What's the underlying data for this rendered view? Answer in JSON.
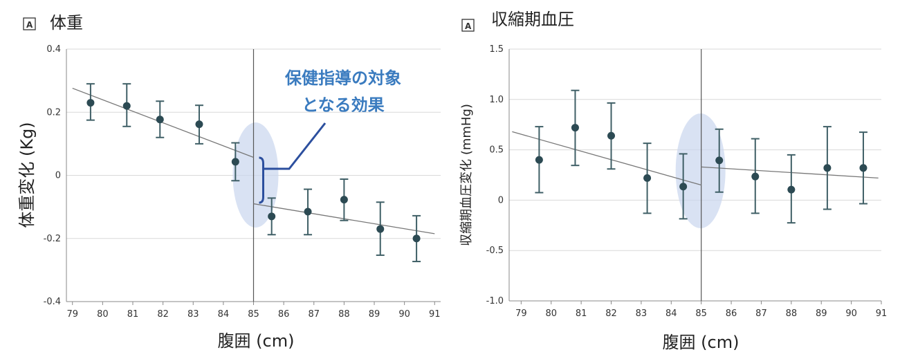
{
  "chart_data": [
    {
      "type": "scatter",
      "badge": "A",
      "title": "体重",
      "xlabel": "腹囲 (cm)",
      "ylabel": "体重変化 (Kg)",
      "xlim": [
        78.8,
        91.2
      ],
      "ylim": [
        -0.4,
        0.4
      ],
      "x_ticks": [
        "79",
        "80",
        "81",
        "82",
        "83",
        "84",
        "85",
        "86",
        "87",
        "88",
        "89",
        "90",
        "91"
      ],
      "y_ticks": [
        "0.4",
        "0.2",
        "0",
        "-0.2",
        "-0.4"
      ],
      "y_tick_values": [
        0.4,
        0.2,
        0,
        -0.2,
        -0.4
      ],
      "cutoff_x": 85,
      "points": [
        {
          "x": 79.6,
          "y": 0.23,
          "lo": 0.175,
          "hi": 0.29
        },
        {
          "x": 80.8,
          "y": 0.22,
          "lo": 0.155,
          "hi": 0.29
        },
        {
          "x": 81.9,
          "y": 0.177,
          "lo": 0.12,
          "hi": 0.235
        },
        {
          "x": 83.2,
          "y": 0.162,
          "lo": 0.1,
          "hi": 0.222
        },
        {
          "x": 84.4,
          "y": 0.043,
          "lo": -0.017,
          "hi": 0.103
        },
        {
          "x": 85.6,
          "y": -0.13,
          "lo": -0.188,
          "hi": -0.072
        },
        {
          "x": 86.8,
          "y": -0.115,
          "lo": -0.188,
          "hi": -0.044
        },
        {
          "x": 88.0,
          "y": -0.077,
          "lo": -0.143,
          "hi": -0.012
        },
        {
          "x": 89.2,
          "y": -0.17,
          "lo": -0.253,
          "hi": -0.085
        },
        {
          "x": 90.4,
          "y": -0.2,
          "lo": -0.273,
          "hi": -0.128
        }
      ],
      "trend_lines": [
        {
          "x": [
            79.0,
            85.0
          ],
          "y": [
            0.276,
            0.057
          ]
        },
        {
          "x": [
            85.0,
            91.0
          ],
          "y": [
            -0.09,
            -0.185
          ]
        }
      ],
      "annotation": [
        "保健指導の対象",
        "となる効果"
      ]
    },
    {
      "type": "scatter",
      "badge": "A",
      "title": "収縮期血圧",
      "xlabel": "腹囲 (cm)",
      "ylabel": "収縮期血圧変化 (mmHg)",
      "xlim": [
        78.6,
        91.0
      ],
      "ylim": [
        -1.0,
        1.5
      ],
      "x_ticks": [
        "79",
        "80",
        "81",
        "82",
        "83",
        "84",
        "85",
        "86",
        "87",
        "88",
        "89",
        "90",
        "91"
      ],
      "y_ticks": [
        "1.5",
        "1.0",
        "0.5",
        "0",
        "-0.5",
        "-1.0"
      ],
      "y_tick_values": [
        1.5,
        1.0,
        0.5,
        0,
        -0.5,
        -1.0
      ],
      "cutoff_x": 85,
      "points": [
        {
          "x": 79.6,
          "y": 0.4,
          "lo": 0.075,
          "hi": 0.73
        },
        {
          "x": 80.8,
          "y": 0.72,
          "lo": 0.345,
          "hi": 1.09
        },
        {
          "x": 82.0,
          "y": 0.64,
          "lo": 0.31,
          "hi": 0.965
        },
        {
          "x": 83.2,
          "y": 0.22,
          "lo": -0.13,
          "hi": 0.565
        },
        {
          "x": 84.4,
          "y": 0.135,
          "lo": -0.185,
          "hi": 0.46
        },
        {
          "x": 85.6,
          "y": 0.395,
          "lo": 0.08,
          "hi": 0.705
        },
        {
          "x": 86.8,
          "y": 0.235,
          "lo": -0.13,
          "hi": 0.61
        },
        {
          "x": 88.0,
          "y": 0.105,
          "lo": -0.225,
          "hi": 0.45
        },
        {
          "x": 89.2,
          "y": 0.32,
          "lo": -0.09,
          "hi": 0.73
        },
        {
          "x": 90.4,
          "y": 0.32,
          "lo": -0.035,
          "hi": 0.675
        }
      ],
      "trend_lines": [
        {
          "x": [
            78.7,
            85.0
          ],
          "y": [
            0.68,
            0.15
          ]
        },
        {
          "x": [
            85.0,
            90.9
          ],
          "y": [
            0.33,
            0.22
          ]
        }
      ]
    }
  ]
}
